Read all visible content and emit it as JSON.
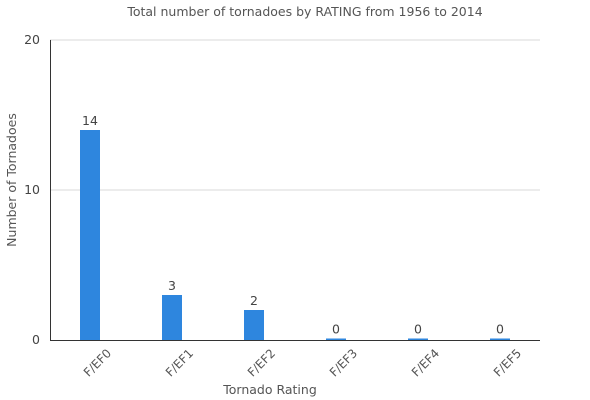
{
  "colors": {
    "bar": "#2e86de",
    "grid": "#d9d9d9",
    "axis": "#333333",
    "text": "#555555"
  },
  "chart_data": {
    "type": "bar",
    "title": "Total number of tornadoes by RATING from 1956 to 2014",
    "xlabel": "Tornado Rating",
    "ylabel": "Number of Tornadoes",
    "categories": [
      "F/EF0",
      "F/EF1",
      "F/EF2",
      "F/EF3",
      "F/EF4",
      "F/EF5"
    ],
    "values": [
      14,
      3,
      2,
      0,
      0,
      0
    ],
    "data_labels": [
      "14",
      "3",
      "2",
      "0",
      "0",
      "0"
    ],
    "ylim": [
      0,
      20
    ],
    "yticks": [
      0,
      10,
      20
    ],
    "grid": true,
    "legend": "none"
  }
}
